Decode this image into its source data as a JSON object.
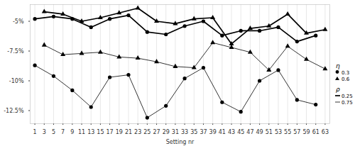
{
  "chart_data": {
    "type": "line",
    "x_label": "Setting nr",
    "xlim": [
      0,
      64
    ],
    "xticks": [
      1,
      3,
      5,
      7,
      9,
      11,
      13,
      15,
      17,
      19,
      21,
      23,
      25,
      27,
      29,
      31,
      33,
      35,
      37,
      39,
      41,
      43,
      45,
      47,
      49,
      51,
      53,
      55,
      57,
      59,
      61,
      63
    ],
    "ylim": [
      -13.6,
      -3.6
    ],
    "yticks": [
      {
        "value": -5,
        "label": "-5%"
      },
      {
        "value": -7.5,
        "label": "-7.5%"
      },
      {
        "value": -10,
        "label": "-10%"
      },
      {
        "value": -12.5,
        "label": "-12.5%"
      }
    ],
    "grid": true,
    "legend": "right",
    "legends": [
      {
        "title": "η",
        "items": [
          {
            "label": "0.3",
            "marker": "circle"
          },
          {
            "label": "0.6",
            "marker": "triangle"
          }
        ]
      },
      {
        "title": "ρ",
        "items": [
          {
            "label": "0.25",
            "line_style": "thick"
          },
          {
            "label": "0.75",
            "line_style": "thin"
          }
        ]
      }
    ],
    "series": [
      {
        "eta": "0.3",
        "rho": "0.25",
        "marker": "circle",
        "line_style": "thick",
        "color": "#000000",
        "x": [
          1,
          5,
          9,
          13,
          17,
          21,
          25,
          29,
          33,
          37,
          41,
          45,
          49,
          53,
          57,
          61
        ],
        "values": [
          -4.8,
          -4.6,
          -4.8,
          -5.5,
          -4.8,
          -4.5,
          -5.9,
          -6.1,
          -5.4,
          -5.0,
          -6.2,
          -5.8,
          -5.8,
          -5.5,
          -6.7,
          -6.2
        ]
      },
      {
        "eta": "0.6",
        "rho": "0.25",
        "marker": "triangle",
        "line_style": "thick",
        "color": "#000000",
        "x": [
          3,
          7,
          11,
          15,
          19,
          23,
          27,
          31,
          35,
          39,
          43,
          47,
          51,
          55,
          59,
          63
        ],
        "values": [
          -4.2,
          -4.4,
          -5.0,
          -4.7,
          -4.3,
          -3.9,
          -5.0,
          -5.2,
          -4.8,
          -4.7,
          -6.9,
          -5.6,
          -5.4,
          -4.4,
          -6.0,
          -5.7
        ]
      },
      {
        "eta": "0.3",
        "rho": "0.75",
        "marker": "circle",
        "line_style": "thin",
        "color": "#000000",
        "x": [
          1,
          5,
          9,
          13,
          17,
          21,
          25,
          29,
          33,
          37,
          41,
          45,
          49,
          53,
          57,
          61
        ],
        "values": [
          -8.7,
          -9.6,
          -10.8,
          -12.2,
          -9.7,
          -9.5,
          -13.1,
          -12.1,
          -9.8,
          -8.9,
          -11.8,
          -12.6,
          -10.0,
          -9.1,
          -11.6,
          -12.0
        ]
      },
      {
        "eta": "0.6",
        "rho": "0.75",
        "marker": "triangle",
        "line_style": "thin",
        "color": "#000000",
        "x": [
          3,
          7,
          11,
          15,
          19,
          23,
          27,
          31,
          35,
          39,
          43,
          47,
          51,
          55,
          59,
          63
        ],
        "values": [
          -7.0,
          -7.8,
          -7.7,
          -7.6,
          -8.0,
          -8.1,
          -8.4,
          -8.8,
          -8.9,
          -6.8,
          -7.2,
          -7.6,
          -9.1,
          -7.1,
          -8.2,
          -9.0
        ]
      }
    ]
  }
}
